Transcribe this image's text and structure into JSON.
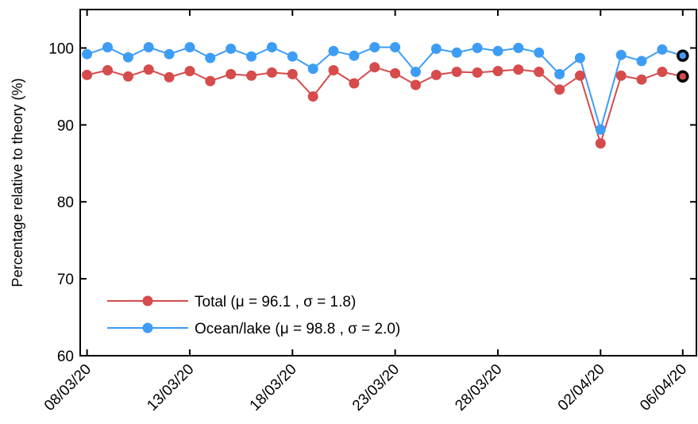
{
  "chart_data": {
    "type": "line",
    "title": "",
    "xlabel": "",
    "ylabel": "Percentage relative to theory (%)",
    "ylim": [
      60,
      105
    ],
    "yticks": [
      60,
      70,
      80,
      90,
      100
    ],
    "xtick_labels": [
      "08/03/20",
      "13/03/20",
      "18/03/20",
      "23/03/20",
      "28/03/20",
      "02/04/20",
      "06/04/20"
    ],
    "xtick_dates": [
      "2020-03-08",
      "2020-03-13",
      "2020-03-18",
      "2020-03-23",
      "2020-03-28",
      "2020-04-02",
      "2020-04-06"
    ],
    "xlim": [
      "2020-03-07T16:00",
      "2020-04-06T16:00"
    ],
    "grid": false,
    "legend_position": "bottom-left",
    "x": [
      "2020-03-08T00:00",
      "2020-03-08T12:00",
      "2020-03-09T00:00",
      "2020-03-09T12:00",
      "2020-03-10T00:00",
      "2020-03-10T12:00",
      "2020-03-11T00:00",
      "2020-03-11T12:00",
      "2020-03-12T00:00",
      "2020-03-12T12:00",
      "2020-03-13T00:00",
      "2020-03-13T12:00",
      "2020-03-14T00:00",
      "2020-03-14T12:00",
      "2020-03-15T00:00",
      "2020-03-15T12:00",
      "2020-03-16T00:00",
      "2020-03-16T12:00",
      "2020-03-17T00:00",
      "2020-03-17T12:00",
      "2020-03-18T00:00",
      "2020-03-18T12:00",
      "2020-03-19T00:00",
      "2020-03-19T12:00",
      "2020-03-20T00:00",
      "2020-03-20T12:00",
      "2020-03-21T00:00",
      "2020-03-21T12:00",
      "2020-03-22T00:00",
      "2020-03-22T12:00",
      "2020-03-23T00:00",
      "2020-03-23T12:00",
      "2020-03-24T00:00",
      "2020-03-24T12:00",
      "2020-03-25T00:00"
    ],
    "series": [
      {
        "name": "Total (μ = 96.1 , σ = 1.8)",
        "color": "#d64b4b",
        "x": [
          "2020-03-08",
          "2020-03-09",
          "2020-03-10",
          "2020-03-11",
          "2020-03-12",
          "2020-03-13",
          "2020-03-14",
          "2020-03-15",
          "2020-03-16",
          "2020-03-17",
          "2020-03-18",
          "2020-03-19",
          "2020-03-20",
          "2020-03-21",
          "2020-03-22",
          "2020-03-23",
          "2020-03-24",
          "2020-03-25",
          "2020-03-26",
          "2020-03-27",
          "2020-03-28",
          "2020-03-29",
          "2020-03-30",
          "2020-03-31",
          "2020-04-01",
          "2020-04-02",
          "2020-04-03",
          "2020-04-04",
          "2020-04-05",
          "2020-04-06"
        ],
        "values": [
          96.5,
          97.1,
          96.3,
          97.2,
          96.2,
          97.0,
          95.7,
          96.6,
          96.4,
          96.8,
          96.6,
          93.7,
          97.1,
          95.4,
          97.5,
          96.7,
          95.2,
          96.5,
          96.9,
          96.8,
          97.0,
          97.2,
          96.9,
          94.6,
          96.4,
          87.6,
          96.4,
          95.9,
          96.9,
          96.3
        ]
      },
      {
        "name": "Ocean/lake (μ = 98.8 , σ = 2.0)",
        "color": "#3d9df5",
        "x": [
          "2020-03-08",
          "2020-03-09",
          "2020-03-10",
          "2020-03-11",
          "2020-03-12",
          "2020-03-13",
          "2020-03-14",
          "2020-03-15",
          "2020-03-16",
          "2020-03-17",
          "2020-03-18",
          "2020-03-19",
          "2020-03-20",
          "2020-03-21",
          "2020-03-22",
          "2020-03-23",
          "2020-03-24",
          "2020-03-25",
          "2020-03-26",
          "2020-03-27",
          "2020-03-28",
          "2020-03-29",
          "2020-03-30",
          "2020-03-31",
          "2020-04-01",
          "2020-04-02",
          "2020-04-03",
          "2020-04-04",
          "2020-04-05",
          "2020-04-06"
        ],
        "values": [
          99.2,
          100.1,
          98.8,
          100.1,
          99.2,
          100.1,
          98.7,
          99.9,
          98.9,
          100.1,
          98.9,
          97.3,
          99.6,
          99.0,
          100.1,
          100.1,
          96.9,
          99.9,
          99.4,
          100.0,
          99.6,
          100.0,
          99.4,
          96.6,
          98.7,
          89.4,
          99.1,
          98.3,
          99.8,
          99.0
        ]
      }
    ],
    "highlighted_points": [
      {
        "series": "Total (μ = 96.1 , σ = 1.8)",
        "x": "2020-04-06",
        "y": 96.3
      },
      {
        "series": "Ocean/lake (μ = 98.8 , σ = 2.0)",
        "x": "2020-04-06",
        "y": 99.0
      }
    ]
  }
}
